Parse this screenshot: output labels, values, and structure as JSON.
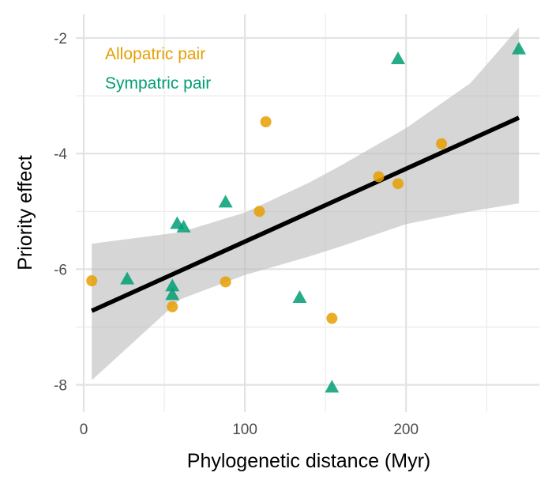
{
  "chart_data": {
    "type": "scatter",
    "xlabel": "Phylogenetic distance (Myr)",
    "ylabel": "Priority effect",
    "xlim": [
      -5,
      273
    ],
    "ylim": [
      -8.5,
      -1.55
    ],
    "x_ticks": [
      0,
      100,
      200
    ],
    "x_minor_ticks": [
      50,
      150,
      250
    ],
    "y_ticks": [
      -8,
      -6,
      -4,
      -2
    ],
    "y_minor_ticks": [
      -7,
      -5,
      -3
    ],
    "grid": true,
    "legend_position": "top-left",
    "series": [
      {
        "name": "Allopatric pair",
        "color": "#E69F00",
        "marker": "circle",
        "points": [
          {
            "x": 5,
            "y": -6.2
          },
          {
            "x": 55,
            "y": -6.65
          },
          {
            "x": 88,
            "y": -6.22
          },
          {
            "x": 109,
            "y": -5.0
          },
          {
            "x": 113,
            "y": -3.45
          },
          {
            "x": 154,
            "y": -6.85
          },
          {
            "x": 183,
            "y": -4.4
          },
          {
            "x": 195,
            "y": -4.52
          },
          {
            "x": 222,
            "y": -3.83
          }
        ]
      },
      {
        "name": "Sympatric pair",
        "color": "#009E73",
        "marker": "triangle",
        "points": [
          {
            "x": 27,
            "y": -6.18
          },
          {
            "x": 55,
            "y": -6.3
          },
          {
            "x": 55,
            "y": -6.45
          },
          {
            "x": 58,
            "y": -5.22
          },
          {
            "x": 62,
            "y": -5.28
          },
          {
            "x": 88,
            "y": -4.85
          },
          {
            "x": 134,
            "y": -6.5
          },
          {
            "x": 154,
            "y": -8.05
          },
          {
            "x": 195,
            "y": -2.37
          },
          {
            "x": 270,
            "y": -2.2
          }
        ]
      }
    ],
    "fit_line": {
      "color": "#000000",
      "x": [
        5,
        270
      ],
      "y": [
        -6.72,
        -3.38
      ]
    },
    "confidence_band": {
      "color": "#bdbdbd",
      "x": [
        5,
        60,
        100,
        140,
        160,
        200,
        240,
        270
      ],
      "lower": [
        -7.92,
        -6.52,
        -6.1,
        -5.78,
        -5.6,
        -5.22,
        -5.0,
        -4.86
      ],
      "upper": [
        -5.56,
        -5.36,
        -5.02,
        -4.5,
        -4.2,
        -3.56,
        -2.78,
        -1.82
      ]
    }
  }
}
